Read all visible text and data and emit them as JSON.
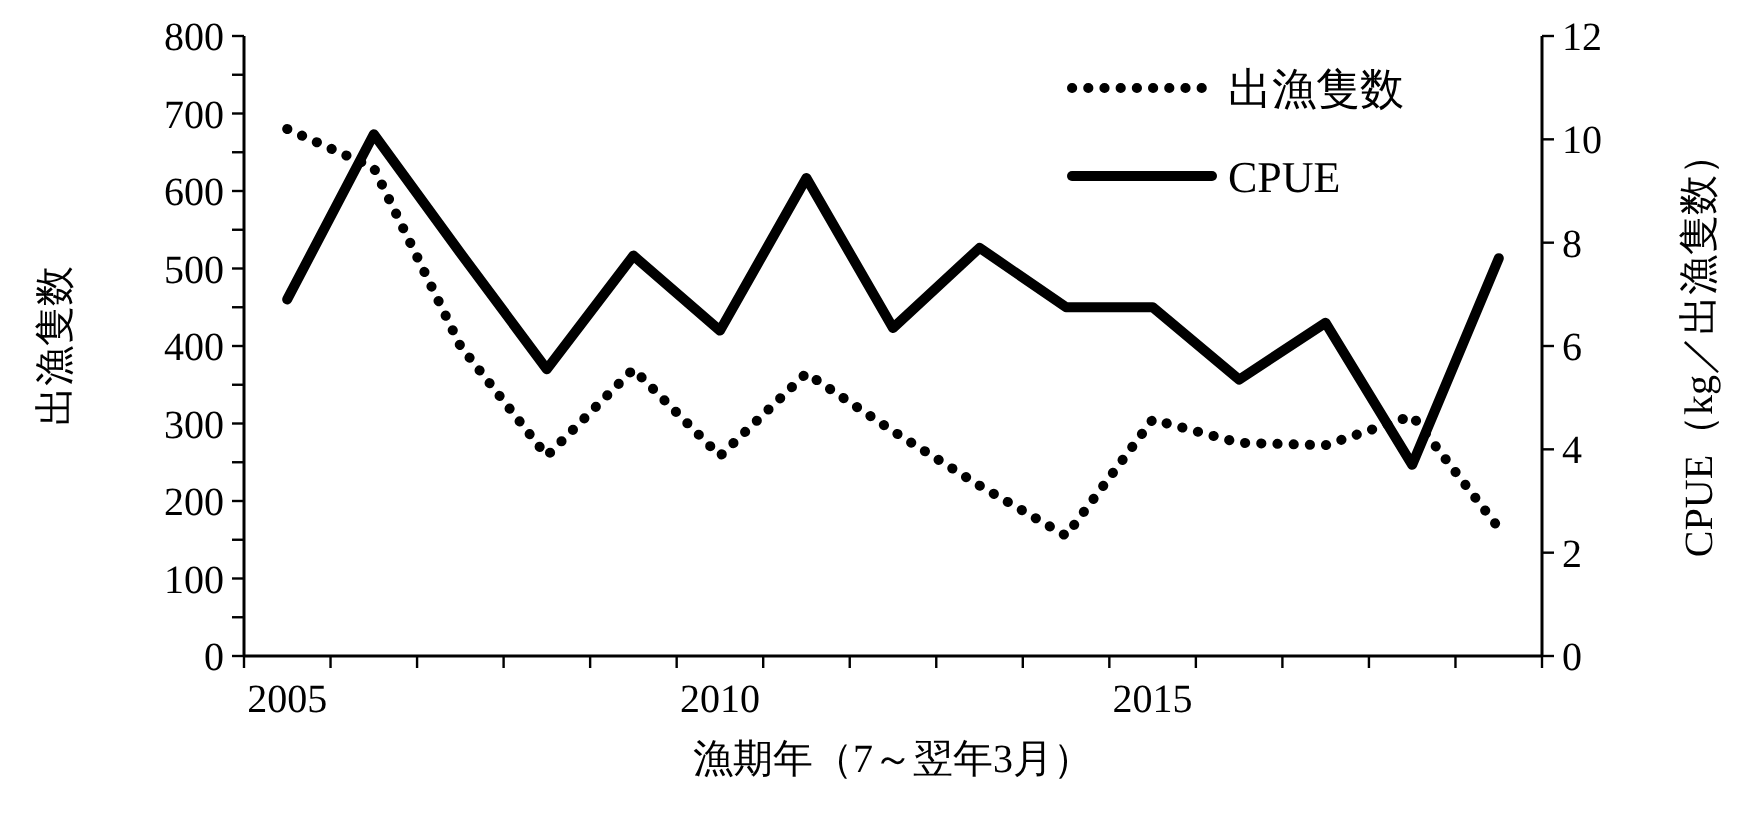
{
  "chart_data": {
    "type": "line",
    "categories": [
      "2005",
      null,
      null,
      null,
      null,
      "2010",
      null,
      null,
      null,
      null,
      "2015",
      null,
      null,
      null,
      null
    ],
    "xlabel": "漁期年（7～翌年3月）",
    "ylabel": "出漁隻数",
    "y2label": "CPUE（kg／出漁隻数）",
    "ylim": [
      0,
      800
    ],
    "yticks": [
      0,
      {
        "value": 50,
        "label": null
      },
      100,
      {
        "value": 150,
        "label": null
      },
      200,
      {
        "value": 250,
        "label": null
      },
      300,
      {
        "value": 350,
        "label": null
      },
      400,
      {
        "value": 450,
        "label": null
      },
      500,
      {
        "value": 550,
        "label": null
      },
      600,
      {
        "value": 650,
        "label": null
      },
      700,
      {
        "value": 750,
        "label": null
      },
      800
    ],
    "y2lim": [
      0,
      12
    ],
    "y2ticks": [
      0,
      2,
      4,
      6,
      8,
      10,
      12
    ],
    "legend": "top right",
    "series": [
      {
        "name": "出漁隻数",
        "color": "#000000",
        "line_style": "dotted",
        "axis": "y",
        "values": [
          680,
          630,
          400,
          258,
          370,
          258,
          365,
          290,
          220,
          155,
          305,
          275,
          272,
          310,
          165
        ]
      },
      {
        "name": "CPUE",
        "color": "#000000",
        "line_style": "solid",
        "axis": "y2",
        "values": [
          6.9,
          10.1,
          7.8,
          5.55,
          7.75,
          6.3,
          9.25,
          6.35,
          7.9,
          6.75,
          6.75,
          5.35,
          6.45,
          3.7,
          7.7
        ]
      }
    ]
  }
}
